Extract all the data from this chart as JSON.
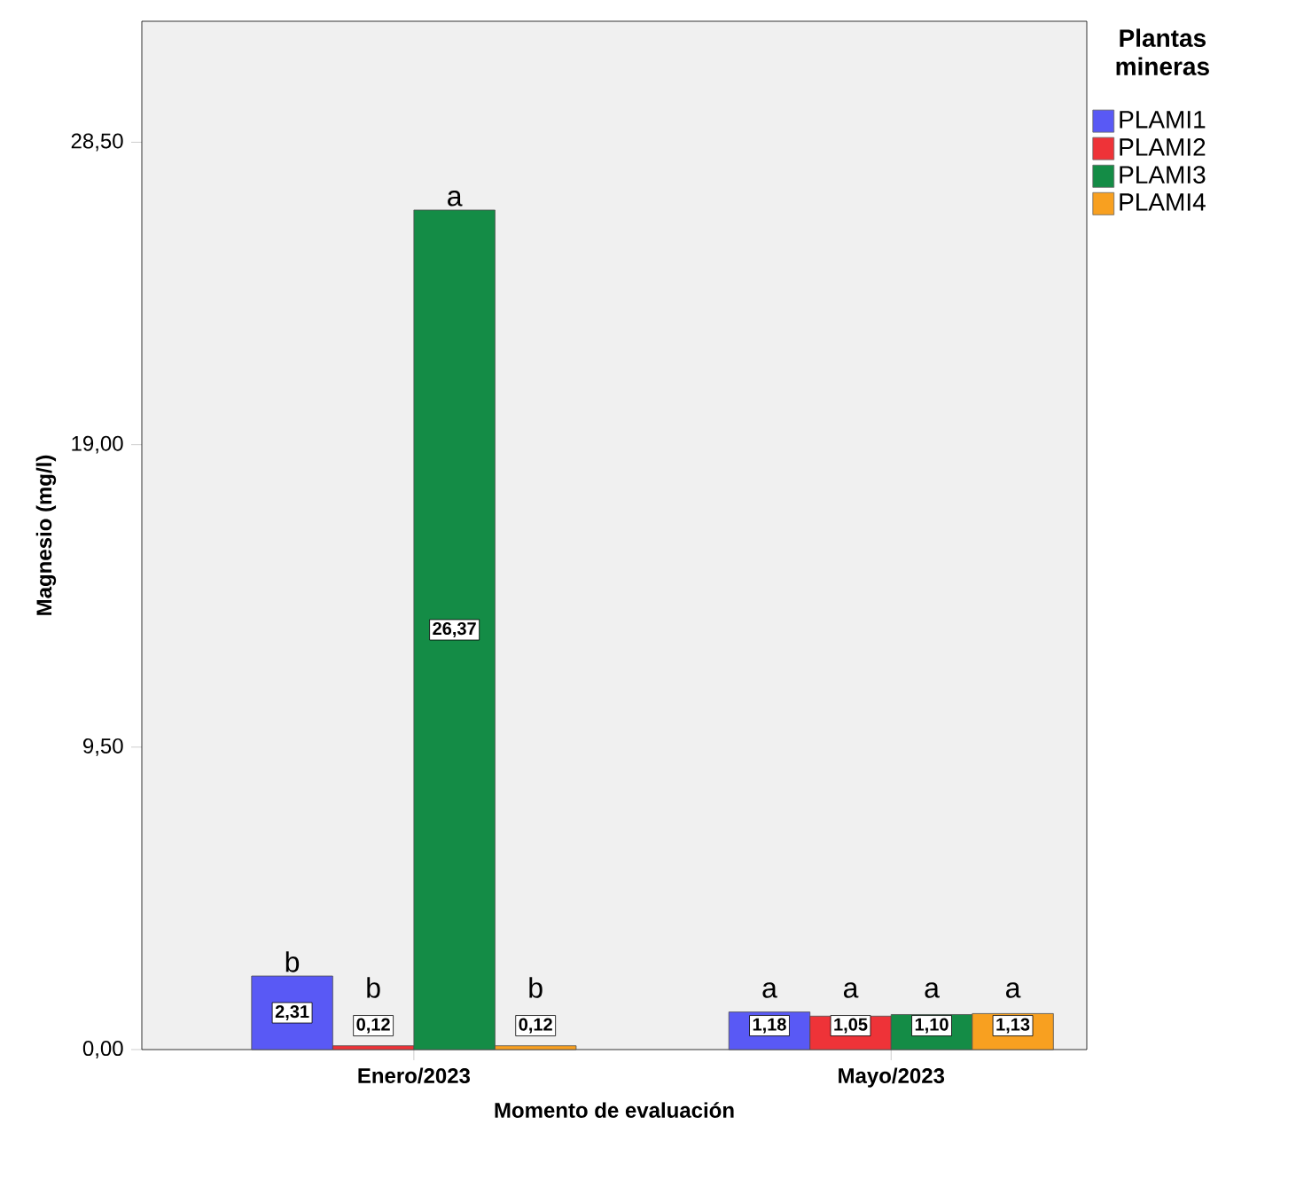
{
  "chart_data": {
    "type": "bar",
    "xlabel": "Momento de evaluación",
    "ylabel": "Magnesio (mg/l)",
    "legend_title": "Plantas mineras",
    "legend": "top right",
    "categories": [
      "Enero/2023",
      "Mayo/2023"
    ],
    "ylim": [
      0,
      32.3
    ],
    "yticks": [
      {
        "value": 0,
        "label": "0,00"
      },
      {
        "value": 9.5,
        "label": "9,50"
      },
      {
        "value": 19,
        "label": "19,00"
      },
      {
        "value": 28.5,
        "label": "28,50"
      }
    ],
    "series": [
      {
        "name": "PLAMI1",
        "color": "#5959f5",
        "values": [
          2.31,
          1.18
        ],
        "value_labels": [
          "2,31",
          "1,18"
        ]
      },
      {
        "name": "PLAMI2",
        "color": "#ee3338",
        "values": [
          0.12,
          1.05
        ],
        "value_labels": [
          "0,12",
          "1,05"
        ]
      },
      {
        "name": "PLAMI3",
        "color": "#148c46",
        "values": [
          26.37,
          1.1
        ],
        "value_labels": [
          "26,37",
          "1,10"
        ]
      },
      {
        "name": "PLAMI4",
        "color": "#f8a020",
        "values": [
          0.12,
          1.13
        ],
        "value_labels": [
          "0,12",
          "1,13"
        ]
      }
    ],
    "annotations": [
      "b",
      "b",
      "a",
      "b",
      "a",
      "a",
      "a",
      "a"
    ]
  }
}
